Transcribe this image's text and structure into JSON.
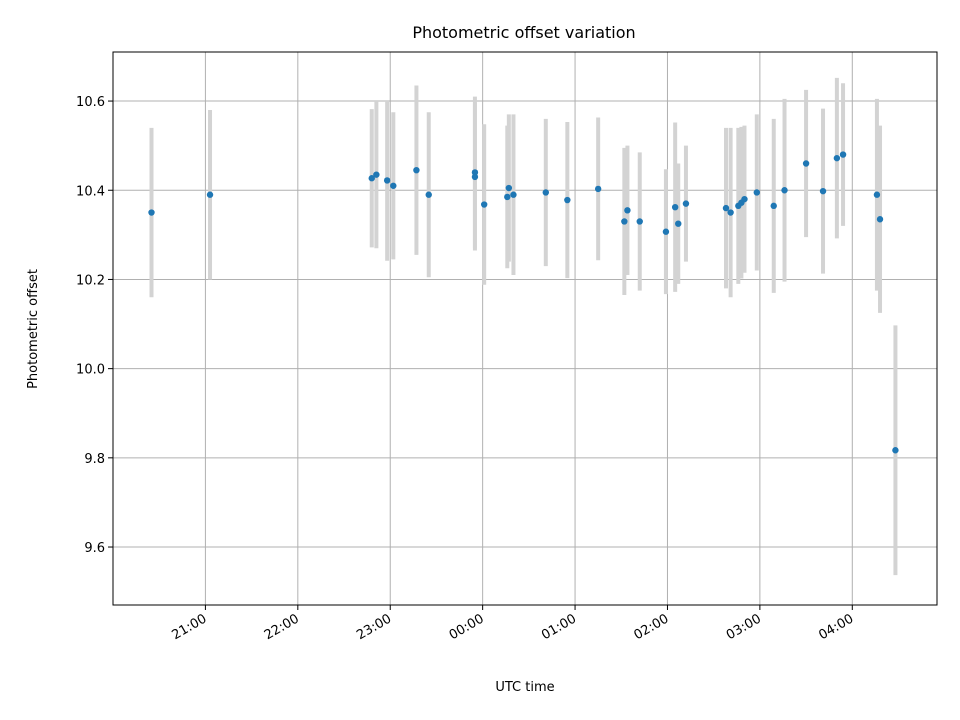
{
  "chart_data": {
    "type": "scatter",
    "title": "Photometric offset variation",
    "xlabel": "UTC time",
    "ylabel": "Photometric offset",
    "x_axis_kind": "time",
    "xlim": [
      "20:00",
      "04:55"
    ],
    "x_ticks": [
      "21:00",
      "22:00",
      "23:00",
      "00:00",
      "01:00",
      "02:00",
      "03:00",
      "04:00"
    ],
    "ylim": [
      9.47,
      10.71
    ],
    "y_ticks": [
      "9.6",
      "9.8",
      "10.0",
      "10.2",
      "10.4",
      "10.6"
    ],
    "grid": true,
    "point_color": "#1f77b4",
    "errorbar_color": "#d3d3d3",
    "series": [
      {
        "points": [
          {
            "x": "20:25",
            "y": 10.35,
            "err": 0.19
          },
          {
            "x": "21:03",
            "y": 10.39,
            "err": 0.19
          },
          {
            "x": "22:48",
            "y": 10.427,
            "err": 0.155
          },
          {
            "x": "22:51",
            "y": 10.435,
            "err": 0.165
          },
          {
            "x": "22:58",
            "y": 10.422,
            "err": 0.18
          },
          {
            "x": "23:02",
            "y": 10.41,
            "err": 0.165
          },
          {
            "x": "23:17",
            "y": 10.445,
            "err": 0.19
          },
          {
            "x": "23:25",
            "y": 10.39,
            "err": 0.185
          },
          {
            "x": "23:55",
            "y": 10.44,
            "err": 0.17
          },
          {
            "x": "23:55",
            "y": 10.43,
            "err": 0.165
          },
          {
            "x": "00:01",
            "y": 10.368,
            "err": 0.18
          },
          {
            "x": "00:16",
            "y": 10.385,
            "err": 0.16
          },
          {
            "x": "00:17",
            "y": 10.405,
            "err": 0.165
          },
          {
            "x": "00:20",
            "y": 10.39,
            "err": 0.18
          },
          {
            "x": "00:41",
            "y": 10.395,
            "err": 0.165
          },
          {
            "x": "00:55",
            "y": 10.378,
            "err": 0.175
          },
          {
            "x": "01:15",
            "y": 10.403,
            "err": 0.16
          },
          {
            "x": "01:32",
            "y": 10.33,
            "err": 0.165
          },
          {
            "x": "01:34",
            "y": 10.355,
            "err": 0.145
          },
          {
            "x": "01:42",
            "y": 10.33,
            "err": 0.155
          },
          {
            "x": "01:59",
            "y": 10.307,
            "err": 0.14
          },
          {
            "x": "02:05",
            "y": 10.362,
            "err": 0.19
          },
          {
            "x": "02:07",
            "y": 10.325,
            "err": 0.135
          },
          {
            "x": "02:12",
            "y": 10.37,
            "err": 0.13
          },
          {
            "x": "02:38",
            "y": 10.36,
            "err": 0.18
          },
          {
            "x": "02:41",
            "y": 10.35,
            "err": 0.19
          },
          {
            "x": "02:46",
            "y": 10.365,
            "err": 0.175
          },
          {
            "x": "02:48",
            "y": 10.372,
            "err": 0.17
          },
          {
            "x": "02:50",
            "y": 10.38,
            "err": 0.165
          },
          {
            "x": "02:58",
            "y": 10.395,
            "err": 0.175
          },
          {
            "x": "03:09",
            "y": 10.365,
            "err": 0.195
          },
          {
            "x": "03:16",
            "y": 10.4,
            "err": 0.205
          },
          {
            "x": "03:30",
            "y": 10.46,
            "err": 0.165
          },
          {
            "x": "03:41",
            "y": 10.398,
            "err": 0.185
          },
          {
            "x": "03:50",
            "y": 10.472,
            "err": 0.18
          },
          {
            "x": "03:54",
            "y": 10.48,
            "err": 0.16
          },
          {
            "x": "04:16",
            "y": 10.39,
            "err": 0.215
          },
          {
            "x": "04:18",
            "y": 10.335,
            "err": 0.21
          },
          {
            "x": "04:28",
            "y": 9.817,
            "err": 0.28
          }
        ]
      }
    ]
  }
}
